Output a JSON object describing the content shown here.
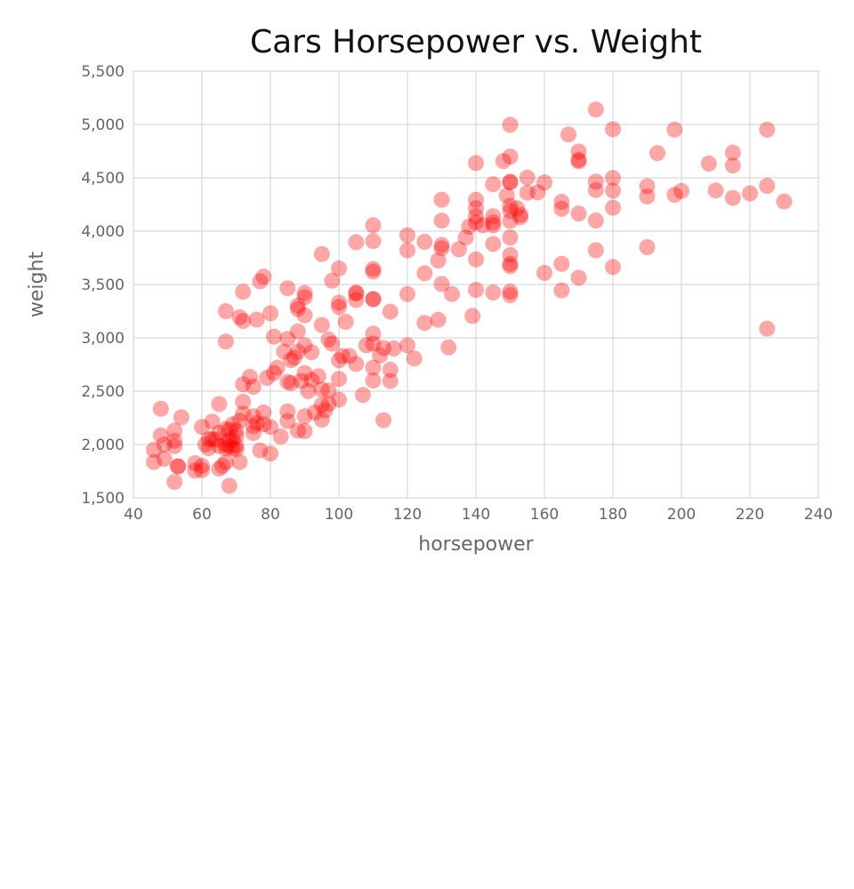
{
  "chart_data": {
    "type": "scatter",
    "title": "Cars Horsepower vs. Weight",
    "xlabel": "horsepower",
    "ylabel": "weight",
    "xlim": [
      40,
      240
    ],
    "ylim": [
      1500,
      5500
    ],
    "x_ticks": [
      40,
      60,
      80,
      100,
      120,
      140,
      160,
      180,
      200,
      220,
      240
    ],
    "x_tick_labels": [
      "40",
      "60",
      "80",
      "100",
      "120",
      "140",
      "160",
      "180",
      "200",
      "220",
      "240"
    ],
    "y_ticks": [
      1500,
      2000,
      2500,
      3000,
      3500,
      4000,
      4500,
      5000,
      5500
    ],
    "y_tick_labels": [
      "1,500",
      "2,000",
      "2,500",
      "3,000",
      "3,500",
      "4,000",
      "4,500",
      "5,000",
      "5,500"
    ],
    "grid": true,
    "legend": "none",
    "marker_color": "#ff0000",
    "marker_opacity": 0.35,
    "points": [
      [
        46,
        1835
      ],
      [
        46,
        1950
      ],
      [
        48,
        2335
      ],
      [
        48,
        2085
      ],
      [
        49,
        2000
      ],
      [
        49,
        1867
      ],
      [
        52,
        2130
      ],
      [
        52,
        1985
      ],
      [
        52,
        2035
      ],
      [
        52,
        1649
      ],
      [
        53,
        1795
      ],
      [
        53,
        1795
      ],
      [
        54,
        2255
      ],
      [
        58,
        1755
      ],
      [
        58,
        1825
      ],
      [
        60,
        1800
      ],
      [
        60,
        2164
      ],
      [
        60,
        1760
      ],
      [
        61,
        2000
      ],
      [
        62,
        2050
      ],
      [
        62,
        1965
      ],
      [
        63,
        2215
      ],
      [
        63,
        2051
      ],
      [
        64,
        2045
      ],
      [
        65,
        2380
      ],
      [
        65,
        1773
      ],
      [
        65,
        1985
      ],
      [
        65,
        2110
      ],
      [
        66,
        1800
      ],
      [
        67,
        1834
      ],
      [
        67,
        2000
      ],
      [
        67,
        1965
      ],
      [
        67,
        2145
      ],
      [
        67,
        3250
      ],
      [
        67,
        2965
      ],
      [
        68,
        1613
      ],
      [
        68,
        2045
      ],
      [
        68,
        2135
      ],
      [
        68,
        1985
      ],
      [
        69,
        1963
      ],
      [
        69,
        2045
      ],
      [
        69,
        2189
      ],
      [
        70,
        1990
      ],
      [
        70,
        2080
      ],
      [
        70,
        2130
      ],
      [
        70,
        1955
      ],
      [
        71,
        2223
      ],
      [
        71,
        1835
      ],
      [
        71,
        3193
      ],
      [
        72,
        2565
      ],
      [
        72,
        2290
      ],
      [
        72,
        2401
      ],
      [
        72,
        3432
      ],
      [
        72,
        3158
      ],
      [
        74,
        2634
      ],
      [
        75,
        2542
      ],
      [
        75,
        2264
      ],
      [
        75,
        2171
      ],
      [
        75,
        2108
      ],
      [
        76,
        2202
      ],
      [
        76,
        3170
      ],
      [
        77,
        1945
      ],
      [
        77,
        3530
      ],
      [
        78,
        2190
      ],
      [
        78,
        3574
      ],
      [
        78,
        2300
      ],
      [
        79,
        2625
      ],
      [
        80,
        1915
      ],
      [
        80,
        2164
      ],
      [
        80,
        3230
      ],
      [
        81,
        2670
      ],
      [
        81,
        3012
      ],
      [
        82,
        2720
      ],
      [
        83,
        2075
      ],
      [
        84,
        2870
      ],
      [
        85,
        2310
      ],
      [
        85,
        2220
      ],
      [
        85,
        2587
      ],
      [
        85,
        2990
      ],
      [
        85,
        3465
      ],
      [
        86,
        2575
      ],
      [
        86,
        2790
      ],
      [
        87,
        2815
      ],
      [
        88,
        2130
      ],
      [
        88,
        2870
      ],
      [
        88,
        3060
      ],
      [
        88,
        3302
      ],
      [
        88,
        3270
      ],
      [
        89,
        2595
      ],
      [
        90,
        2125
      ],
      [
        90,
        2265
      ],
      [
        90,
        2670
      ],
      [
        90,
        2930
      ],
      [
        90,
        3211
      ],
      [
        90,
        3420
      ],
      [
        90,
        3381
      ],
      [
        91,
        2500
      ],
      [
        92,
        2605
      ],
      [
        92,
        2865
      ],
      [
        93,
        2300
      ],
      [
        94,
        2640
      ],
      [
        95,
        2233
      ],
      [
        95,
        2372
      ],
      [
        95,
        2515
      ],
      [
        95,
        3120
      ],
      [
        95,
        3785
      ],
      [
        96,
        2320
      ],
      [
        97,
        2380
      ],
      [
        97,
        2506
      ],
      [
        97,
        2984
      ],
      [
        98,
        2945
      ],
      [
        98,
        3535
      ],
      [
        100,
        2420
      ],
      [
        100,
        2615
      ],
      [
        100,
        2789
      ],
      [
        100,
        3329
      ],
      [
        100,
        3288
      ],
      [
        100,
        3651
      ],
      [
        101,
        2830
      ],
      [
        102,
        3150
      ],
      [
        103,
        2830
      ],
      [
        105,
        2755
      ],
      [
        105,
        3355
      ],
      [
        105,
        3415
      ],
      [
        105,
        3425
      ],
      [
        105,
        3897
      ],
      [
        107,
        2464
      ],
      [
        108,
        2930
      ],
      [
        110,
        2600
      ],
      [
        110,
        2720
      ],
      [
        110,
        2945
      ],
      [
        110,
        3039
      ],
      [
        110,
        3360
      ],
      [
        110,
        3365
      ],
      [
        110,
        3620
      ],
      [
        110,
        3645
      ],
      [
        110,
        3907
      ],
      [
        110,
        4055
      ],
      [
        112,
        2835
      ],
      [
        113,
        2228
      ],
      [
        113,
        2904
      ],
      [
        115,
        2595
      ],
      [
        115,
        2700
      ],
      [
        115,
        3245
      ],
      [
        116,
        2900
      ],
      [
        120,
        2930
      ],
      [
        120,
        3410
      ],
      [
        120,
        3820
      ],
      [
        120,
        3962
      ],
      [
        122,
        2807
      ],
      [
        125,
        3140
      ],
      [
        125,
        3605
      ],
      [
        125,
        3900
      ],
      [
        129,
        3169
      ],
      [
        129,
        3725
      ],
      [
        130,
        3504
      ],
      [
        130,
        3840
      ],
      [
        130,
        3870
      ],
      [
        130,
        4098
      ],
      [
        130,
        4294
      ],
      [
        132,
        2910
      ],
      [
        133,
        3410
      ],
      [
        135,
        3830
      ],
      [
        137,
        3940
      ],
      [
        138,
        4042
      ],
      [
        139,
        3205
      ],
      [
        140,
        3449
      ],
      [
        140,
        3735
      ],
      [
        140,
        4082
      ],
      [
        140,
        4141
      ],
      [
        140,
        4215
      ],
      [
        140,
        4294
      ],
      [
        140,
        4638
      ],
      [
        142,
        4054
      ],
      [
        145,
        3425
      ],
      [
        145,
        3880
      ],
      [
        145,
        4055
      ],
      [
        145,
        4082
      ],
      [
        145,
        4140
      ],
      [
        145,
        4440
      ],
      [
        148,
        4657
      ],
      [
        149,
        4335
      ],
      [
        150,
        3399
      ],
      [
        150,
        3433
      ],
      [
        150,
        3672
      ],
      [
        150,
        3693
      ],
      [
        150,
        3777
      ],
      [
        150,
        3940
      ],
      [
        150,
        4096
      ],
      [
        150,
        4190
      ],
      [
        150,
        4237
      ],
      [
        150,
        4457
      ],
      [
        150,
        4464
      ],
      [
        150,
        4699
      ],
      [
        150,
        4997
      ],
      [
        152,
        4215
      ],
      [
        153,
        4129
      ],
      [
        153,
        4154
      ],
      [
        155,
        4360
      ],
      [
        155,
        4502
      ],
      [
        158,
        4363
      ],
      [
        160,
        3609
      ],
      [
        160,
        4456
      ],
      [
        165,
        3445
      ],
      [
        165,
        3693
      ],
      [
        165,
        4209
      ],
      [
        165,
        4274
      ],
      [
        167,
        4906
      ],
      [
        170,
        3563
      ],
      [
        170,
        4165
      ],
      [
        170,
        4654
      ],
      [
        170,
        4668
      ],
      [
        170,
        4746
      ],
      [
        175,
        3821
      ],
      [
        175,
        4100
      ],
      [
        175,
        4385
      ],
      [
        175,
        4464
      ],
      [
        175,
        5140
      ],
      [
        180,
        3664
      ],
      [
        180,
        4220
      ],
      [
        180,
        4380
      ],
      [
        180,
        4499
      ],
      [
        180,
        4955
      ],
      [
        190,
        3850
      ],
      [
        190,
        4325
      ],
      [
        190,
        4422
      ],
      [
        193,
        4732
      ],
      [
        198,
        4341
      ],
      [
        198,
        4952
      ],
      [
        200,
        4376
      ],
      [
        208,
        4633
      ],
      [
        210,
        4382
      ],
      [
        215,
        4312
      ],
      [
        215,
        4615
      ],
      [
        215,
        4735
      ],
      [
        220,
        4354
      ],
      [
        225,
        3086
      ],
      [
        225,
        4425
      ],
      [
        225,
        4951
      ],
      [
        230,
        4278
      ]
    ]
  }
}
